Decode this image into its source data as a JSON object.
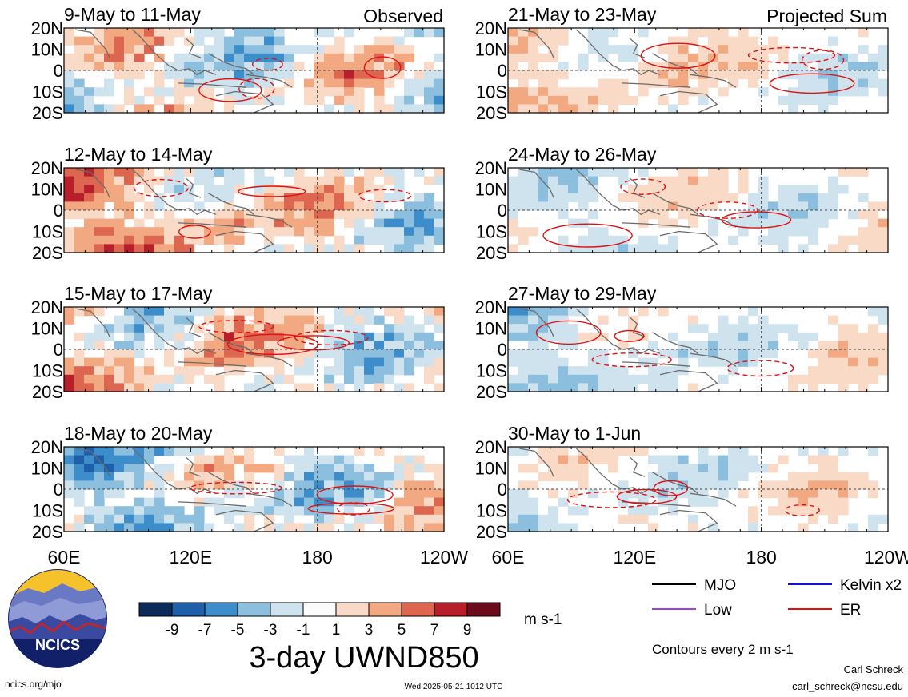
{
  "chart_data": {
    "type": "heatmap",
    "title": "3-day UWND850",
    "variable": "UWND850",
    "units": "m s-1",
    "colorbar": {
      "levels": [
        "-9",
        "-7",
        "-5",
        "-3",
        "-1",
        "1",
        "3",
        "5",
        "7",
        "9"
      ],
      "colors": [
        "#0b2c5a",
        "#1f5fa9",
        "#3e8dcb",
        "#8cbedd",
        "#cfe3ef",
        "#fbfbfb",
        "#f9dac7",
        "#f2a982",
        "#dd6650",
        "#b7202b",
        "#6c0b1c"
      ]
    },
    "columns": [
      {
        "label": "Observed",
        "panels": [
          "9-May to 11-May",
          "12-May to 14-May",
          "15-May to 17-May",
          "18-May to 20-May"
        ]
      },
      {
        "label": "Projected Sum",
        "panels": [
          "21-May to 23-May",
          "24-May to 26-May",
          "27-May to 29-May",
          "30-May to 1-Jun"
        ]
      }
    ],
    "y_ticks": [
      "20N",
      "10N",
      "0",
      "10S",
      "20S"
    ],
    "x_ticks": [
      "60E",
      "120E",
      "180",
      "120W"
    ],
    "y_range_deg": [
      -20,
      20
    ],
    "x_range_deg_east": [
      60,
      240
    ],
    "legend": {
      "items": [
        {
          "name": "MJO",
          "color": "#000000"
        },
        {
          "name": "Kelvin x2",
          "color": "#1010e0"
        },
        {
          "name": "Low",
          "color": "#a040e0"
        },
        {
          "name": "ER",
          "color": "#e01010"
        }
      ],
      "note": "Contours every 2 m s-1"
    }
  },
  "footer": {
    "url": "ncics.org/mjo",
    "timestamp": "Wed 2025-05-21 1012 UTC",
    "author": "Carl Schreck",
    "email": "carl_schreck@ncsu.edu",
    "logo_text": "NCICS"
  }
}
